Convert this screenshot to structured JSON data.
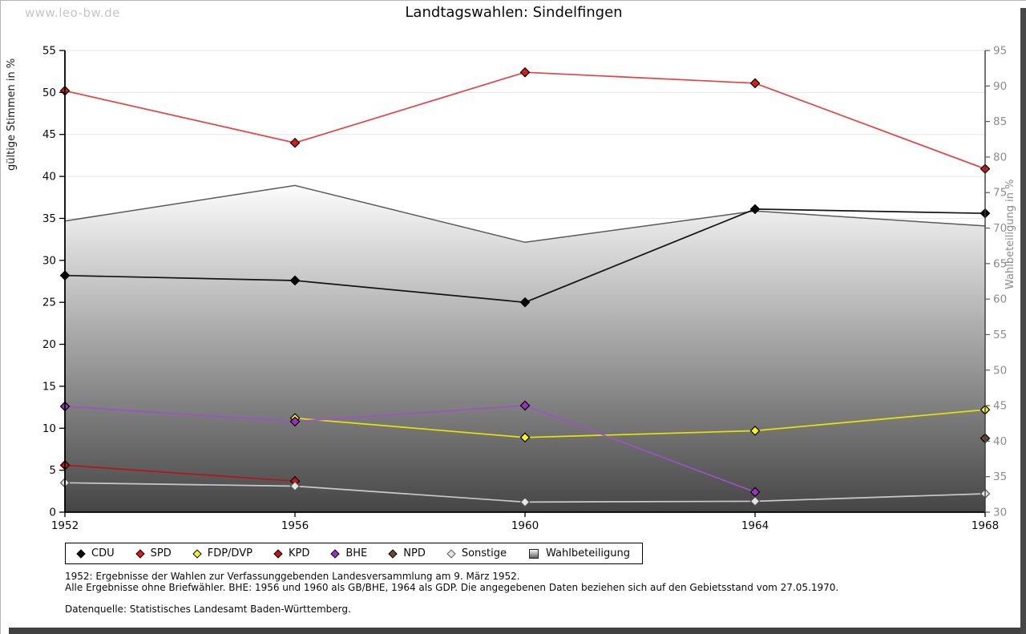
{
  "watermark": "www.leo-bw.de",
  "title": "Landtagswahlen: Sindelfingen",
  "axes": {
    "left_label": "gültige Stimmen in %",
    "right_label": "Wahlbeteiligung in %"
  },
  "footnotes": {
    "line1": "1952: Ergebnisse der Wahlen zur Verfassunggebenden Landesversammlung am 9. März 1952.",
    "line2": "Alle Ergebnisse ohne Briefwähler. BHE: 1956 und 1960 als GB/BHE, 1964 als GDP. Die angegebenen Daten beziehen sich auf den Gebietsstand vom 27.05.1970.",
    "source": "Datenquelle: Statistisches Landesamt Baden-Württemberg."
  },
  "chart_data": {
    "type": "line",
    "title": "Landtagswahlen: Sindelfingen",
    "x": [
      1952,
      1956,
      1960,
      1964,
      1968
    ],
    "ylabel_left": "gültige Stimmen in %",
    "ylabel_right": "Wahlbeteiligung in %",
    "ylim_left": [
      0,
      55
    ],
    "ylim_right": [
      30,
      95
    ],
    "ytick_step": 5,
    "grid": true,
    "legend_position": "bottom",
    "series": [
      {
        "name": "CDU",
        "axis": "left",
        "marker": "diamond",
        "color": "#0a0a0a",
        "line_color": "#141414",
        "values": [
          28.2,
          27.6,
          25.0,
          36.1,
          35.6
        ]
      },
      {
        "name": "SPD",
        "axis": "left",
        "marker": "diamond",
        "color": "#dd1a1a",
        "line_color": "#e84040",
        "values": [
          50.2,
          44.0,
          52.4,
          51.1,
          40.9
        ]
      },
      {
        "name": "FDP/DVP",
        "axis": "left",
        "marker": "diamond",
        "color": "#f5f520",
        "line_color": "#e6e600",
        "values": [
          null,
          11.2,
          8.9,
          9.7,
          12.2
        ]
      },
      {
        "name": "KPD",
        "axis": "left",
        "marker": "diamond",
        "color": "#c41414",
        "line_color": "#b01818",
        "values": [
          5.6,
          3.7,
          null,
          null,
          null
        ]
      },
      {
        "name": "BHE",
        "axis": "left",
        "marker": "diamond",
        "color": "#9933bb",
        "line_color": "#a050c8",
        "values": [
          12.6,
          10.8,
          12.7,
          2.4,
          null
        ]
      },
      {
        "name": "NPD",
        "axis": "left",
        "marker": "diamond",
        "color": "#6f4a2a",
        "line_color": "#6f4a2a",
        "values": [
          null,
          null,
          null,
          null,
          8.8
        ]
      },
      {
        "name": "Sonstige",
        "axis": "left",
        "marker": "diamond",
        "color": "#e6e6e6",
        "line_color": "#c9c9c9",
        "marker_stroke": "#555555",
        "values": [
          3.5,
          3.1,
          1.2,
          1.3,
          2.2
        ]
      },
      {
        "name": "Wahlbeteiligung",
        "axis": "right",
        "type": "area",
        "color": "#888888",
        "line_color": "#5a5a5a",
        "values": [
          71.0,
          76.0,
          68.0,
          72.4,
          70.3
        ]
      }
    ]
  }
}
